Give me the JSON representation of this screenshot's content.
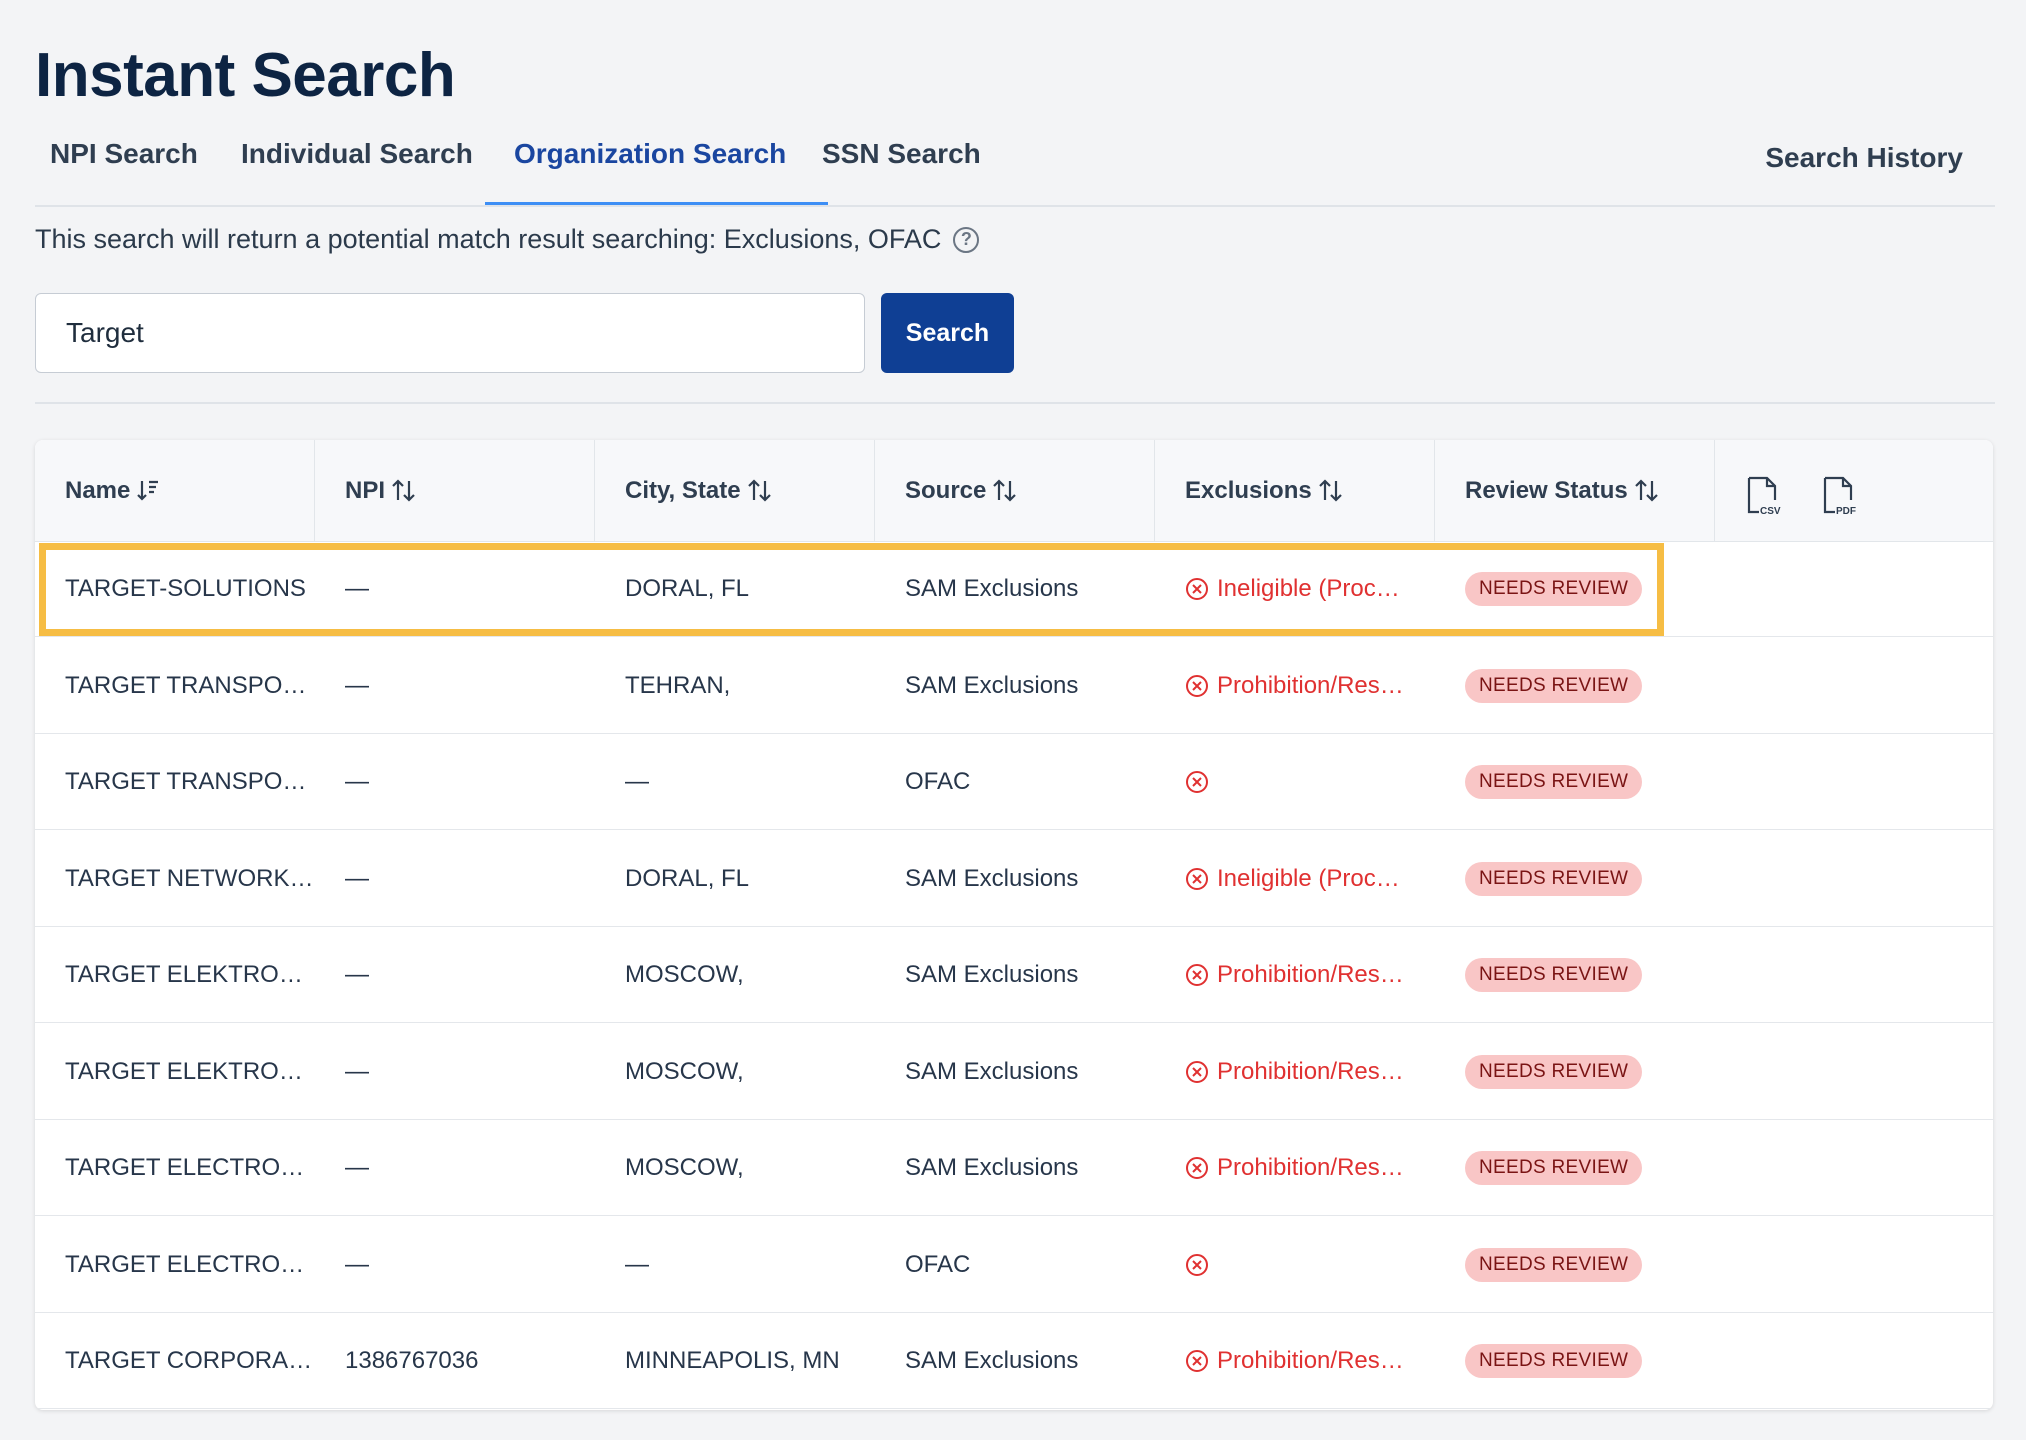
{
  "page_title": "Instant Search",
  "tabs": [
    {
      "label": "NPI Search"
    },
    {
      "label": "Individual Search"
    },
    {
      "label": "Organization Search"
    },
    {
      "label": "SSN Search"
    }
  ],
  "active_tab": "Organization Search",
  "search_history_label": "Search History",
  "description": "This search will return a potential match result searching: Exclusions, OFAC",
  "help_icon_glyph": "?",
  "search": {
    "value": "Target",
    "button_label": "Search"
  },
  "table": {
    "headers": [
      "Name",
      "NPI",
      "City, State",
      "Source",
      "Exclusions",
      "Review Status"
    ],
    "export_icons": [
      "csv-file-icon",
      "pdf-file-icon"
    ],
    "rows": [
      {
        "name": "TARGET-SOLUTIONS",
        "npi": "—",
        "city": "DORAL, FL",
        "source": "SAM Exclusions",
        "exclusion": "Ineligible (Proc…",
        "status": "NEEDS REVIEW"
      },
      {
        "name": "TARGET TRANSPO…",
        "npi": "—",
        "city": "TEHRAN,",
        "source": "SAM Exclusions",
        "exclusion": "Prohibition/Res…",
        "status": "NEEDS REVIEW"
      },
      {
        "name": "TARGET TRANSPO…",
        "npi": "—",
        "city": "—",
        "source": "OFAC",
        "exclusion": "",
        "status": "NEEDS REVIEW"
      },
      {
        "name": "TARGET NETWORK…",
        "npi": "—",
        "city": "DORAL, FL",
        "source": "SAM Exclusions",
        "exclusion": "Ineligible (Proc…",
        "status": "NEEDS REVIEW"
      },
      {
        "name": "TARGET ELEKTRO…",
        "npi": "—",
        "city": "MOSCOW,",
        "source": "SAM Exclusions",
        "exclusion": "Prohibition/Res…",
        "status": "NEEDS REVIEW"
      },
      {
        "name": "TARGET ELEKTRO…",
        "npi": "—",
        "city": "MOSCOW,",
        "source": "SAM Exclusions",
        "exclusion": "Prohibition/Res…",
        "status": "NEEDS REVIEW"
      },
      {
        "name": "TARGET ELECTRO…",
        "npi": "—",
        "city": "MOSCOW,",
        "source": "SAM Exclusions",
        "exclusion": "Prohibition/Res…",
        "status": "NEEDS REVIEW"
      },
      {
        "name": "TARGET ELECTRO…",
        "npi": "—",
        "city": "—",
        "source": "OFAC",
        "exclusion": "",
        "status": "NEEDS REVIEW"
      },
      {
        "name": "TARGET CORPORA…",
        "npi": "1386767036",
        "city": "MINNEAPOLIS, MN",
        "source": "SAM Exclusions",
        "exclusion": "Prohibition/Res…",
        "status": "NEEDS REVIEW"
      }
    ]
  },
  "colors": {
    "accent": "#1a46a0",
    "primary_button": "#0f3f94",
    "exclusion_red": "#e03131",
    "badge_bg": "#f9c6c6",
    "highlight": "#f6bd44"
  }
}
